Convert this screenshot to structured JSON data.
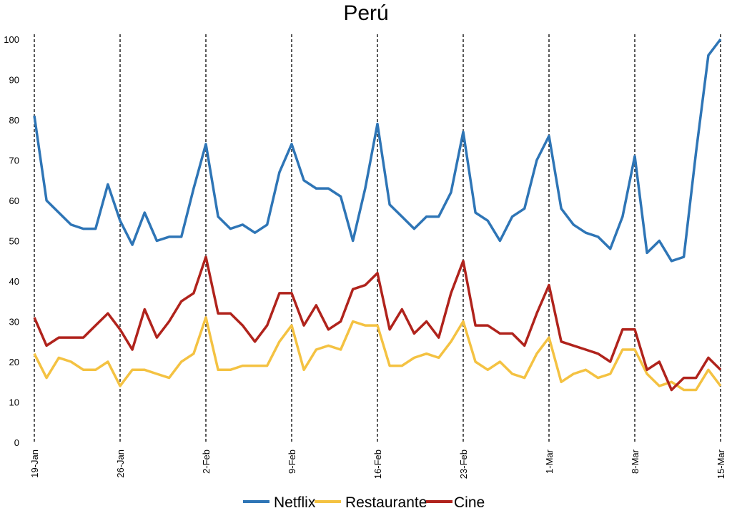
{
  "chart_data": {
    "type": "line",
    "title": "Perú",
    "xlabel": "",
    "ylabel": "",
    "ylim": [
      0,
      100
    ],
    "yticks": [
      "0",
      "10",
      "20",
      "30",
      "40",
      "50",
      "60",
      "70",
      "80",
      "90",
      "100"
    ],
    "x_start": "19-Jan",
    "x_end": "15-Mar",
    "xtick_labels": [
      "19-Jan",
      "26-Jan",
      "2-Feb",
      "9-Feb",
      "16-Feb",
      "23-Feb",
      "1-Mar",
      "8-Mar",
      "15-Mar"
    ],
    "vertical_dashed_lines_at_ticks": true,
    "grid": false,
    "legend": "bottom",
    "series": [
      {
        "name": "Netflix",
        "color": "#2E75B6",
        "values": [
          81,
          60,
          57,
          54,
          53,
          53,
          64,
          55,
          49,
          57,
          50,
          51,
          51,
          63,
          74,
          56,
          53,
          54,
          52,
          54,
          67,
          74,
          65,
          63,
          63,
          61,
          50,
          63,
          79,
          59,
          56,
          53,
          56,
          56,
          62,
          77,
          57,
          55,
          50,
          56,
          58,
          70,
          76,
          58,
          54,
          52,
          51,
          48,
          56,
          71,
          47,
          50,
          45,
          46,
          72,
          96,
          100
        ]
      },
      {
        "name": "Restaurante",
        "color": "#F4C242",
        "values": [
          22,
          16,
          21,
          20,
          18,
          18,
          20,
          14,
          18,
          18,
          17,
          16,
          20,
          22,
          31,
          18,
          18,
          19,
          19,
          19,
          25,
          29,
          18,
          23,
          24,
          23,
          30,
          29,
          29,
          19,
          19,
          21,
          22,
          21,
          25,
          30,
          20,
          18,
          20,
          17,
          16,
          22,
          26,
          15,
          17,
          18,
          16,
          17,
          23,
          23,
          17,
          14,
          15,
          13,
          13,
          18,
          14
        ]
      },
      {
        "name": "Cine",
        "color": "#B0231C",
        "values": [
          31,
          24,
          26,
          26,
          26,
          29,
          32,
          28,
          23,
          33,
          26,
          30,
          35,
          37,
          46,
          32,
          32,
          29,
          25,
          29,
          37,
          37,
          29,
          34,
          28,
          30,
          38,
          39,
          42,
          28,
          33,
          27,
          30,
          26,
          37,
          45,
          29,
          29,
          27,
          27,
          24,
          32,
          39,
          25,
          24,
          23,
          22,
          20,
          28,
          28,
          18,
          20,
          13,
          16,
          16,
          21,
          18
        ]
      }
    ]
  }
}
